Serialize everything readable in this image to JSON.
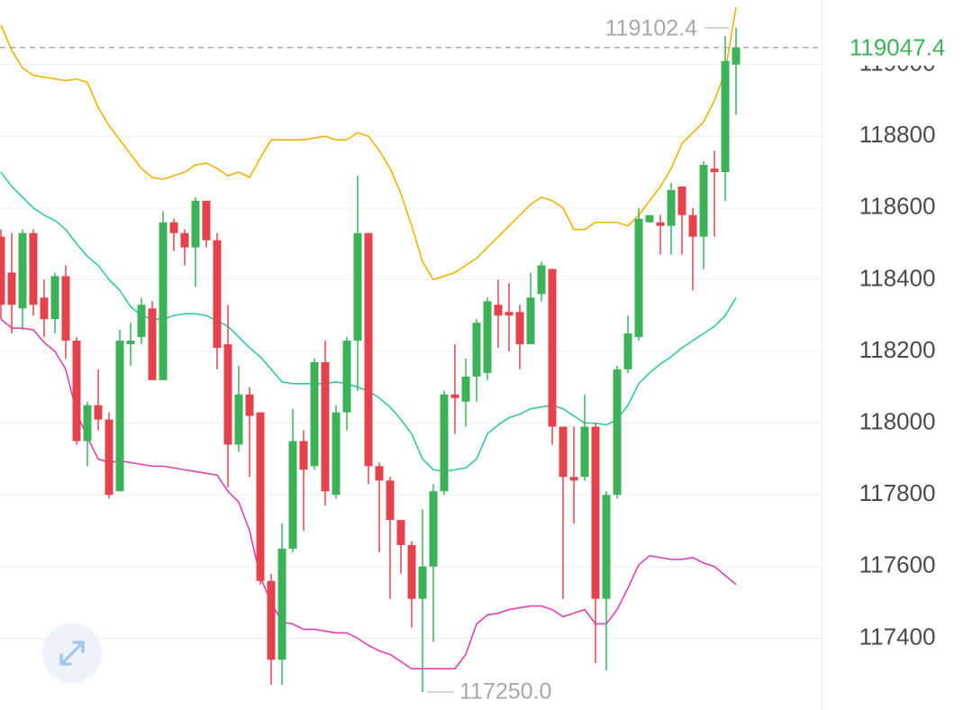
{
  "chart_data": {
    "type": "candlestick",
    "up_color": "#3cb35a",
    "down_color": "#e5424d",
    "grid": true,
    "ylim": [
      117200,
      119180
    ],
    "yticks": [
      117400,
      117600,
      117800,
      118000,
      118200,
      118400,
      118600,
      118800,
      119000
    ],
    "open": [
      118520,
      118420,
      118320,
      118530,
      118350,
      118290,
      118410,
      118230,
      117950,
      118050,
      118010,
      117810,
      118220,
      118240,
      118320,
      118120,
      118560,
      118530,
      118490,
      118620,
      118510,
      118220,
      117940,
      118080,
      118030,
      117560,
      117340,
      117650,
      117950,
      117880,
      118170,
      117800,
      118030,
      118230,
      118530,
      117880,
      117840,
      117730,
      117660,
      117510,
      117600,
      117810,
      118080,
      118060,
      118130,
      118140,
      118330,
      118310,
      118310,
      118220,
      118360,
      118430,
      117990,
      117850,
      117850,
      117990,
      117510,
      117800,
      118150,
      118240,
      118560,
      118560,
      118550,
      118660,
      118580,
      118520,
      118710,
      118700,
      119000
    ],
    "high": [
      118540,
      118530,
      118540,
      118540,
      118400,
      118420,
      118440,
      118240,
      118060,
      118150,
      118030,
      118260,
      118280,
      118350,
      118340,
      118590,
      118570,
      118540,
      118630,
      118620,
      118530,
      118330,
      118160,
      118100,
      118030,
      117580,
      117720,
      118040,
      117980,
      118180,
      118230,
      118050,
      118240,
      118690,
      118530,
      117890,
      117850,
      117730,
      117670,
      117760,
      117830,
      118090,
      118220,
      118180,
      118290,
      118350,
      118400,
      118390,
      118330,
      118420,
      118450,
      118430,
      117990,
      117990,
      118080,
      118000,
      117810,
      118160,
      118300,
      118600,
      118580,
      118580,
      118670,
      118660,
      118600,
      118730,
      118760,
      119080,
      119102.4
    ],
    "low": [
      118290,
      118250,
      118260,
      118300,
      118240,
      118250,
      118180,
      117940,
      117880,
      117980,
      117790,
      117810,
      118160,
      118220,
      118120,
      118120,
      118480,
      118440,
      118380,
      118490,
      118150,
      117820,
      117920,
      117850,
      117550,
      117270,
      117270,
      117640,
      117700,
      117870,
      117770,
      117790,
      117980,
      118090,
      117830,
      117640,
      117510,
      117580,
      117430,
      117250,
      117390,
      117800,
      117970,
      117990,
      118060,
      118120,
      118210,
      118200,
      118150,
      118220,
      118340,
      117940,
      117510,
      117720,
      117840,
      117330,
      117310,
      117790,
      118140,
      118230,
      118560,
      118470,
      118470,
      118470,
      118370,
      118430,
      118520,
      118620,
      118860
    ],
    "close": [
      118330,
      118330,
      118530,
      118330,
      118290,
      118410,
      118230,
      117950,
      118050,
      118010,
      117800,
      118230,
      118230,
      118330,
      118120,
      118560,
      118530,
      118490,
      118620,
      118510,
      118210,
      117940,
      118080,
      118020,
      117560,
      117340,
      117650,
      117950,
      117870,
      118170,
      117810,
      118030,
      118230,
      118530,
      117880,
      117840,
      117730,
      117660,
      117510,
      117600,
      117810,
      118080,
      118070,
      118130,
      118280,
      118340,
      118300,
      118300,
      118220,
      118350,
      118440,
      117990,
      117850,
      117840,
      117990,
      117510,
      117800,
      118150,
      118250,
      118570,
      118580,
      118550,
      118650,
      118580,
      118520,
      118720,
      118700,
      119010,
      119047.4
    ],
    "bands": [
      {
        "color": "#f0b400",
        "values": [
          119110,
          119040,
          118990,
          118970,
          118965,
          118960,
          118955,
          118960,
          118950,
          118880,
          118830,
          118790,
          118750,
          118710,
          118685,
          118680,
          118690,
          118700,
          118720,
          118725,
          118710,
          118690,
          118700,
          118685,
          118740,
          118790,
          118790,
          118790,
          118790,
          118795,
          118800,
          118790,
          118790,
          118810,
          118800,
          118760,
          118710,
          118640,
          118550,
          118450,
          118400,
          118410,
          118420,
          118440,
          118460,
          118490,
          118520,
          118550,
          118580,
          118610,
          118630,
          118620,
          118600,
          118540,
          118540,
          118560,
          118560,
          118560,
          118550,
          118580,
          118620,
          118660,
          118710,
          118780,
          118810,
          118840,
          118900,
          118980,
          119160
        ]
      },
      {
        "color": "#33c9a0",
        "values": [
          118700,
          118660,
          118630,
          118600,
          118580,
          118565,
          118540,
          118500,
          118465,
          118440,
          118400,
          118370,
          118325,
          118300,
          118290,
          118290,
          118300,
          118305,
          118305,
          118300,
          118285,
          118270,
          118240,
          118210,
          118185,
          118150,
          118115,
          118110,
          118110,
          118110,
          118110,
          118115,
          118110,
          118100,
          118090,
          118070,
          118045,
          118010,
          117970,
          117900,
          117870,
          117865,
          117870,
          117875,
          117900,
          117970,
          117995,
          118015,
          118025,
          118040,
          118045,
          118050,
          118040,
          118020,
          118000,
          118000,
          117995,
          118010,
          118050,
          118110,
          118140,
          118165,
          118185,
          118210,
          118230,
          118250,
          118270,
          118300,
          118350
        ]
      },
      {
        "color": "#e040b0",
        "values": [
          118290,
          118265,
          118265,
          118260,
          118225,
          118200,
          118150,
          118030,
          117960,
          117900,
          117890,
          117895,
          117890,
          117885,
          117880,
          117880,
          117875,
          117870,
          117865,
          117860,
          117855,
          117810,
          117780,
          117700,
          117570,
          117500,
          117445,
          117440,
          117425,
          117425,
          117420,
          117415,
          117415,
          117400,
          117380,
          117365,
          117355,
          117335,
          117315,
          117315,
          117315,
          117315,
          117315,
          117355,
          117440,
          117465,
          117470,
          117480,
          117485,
          117490,
          117490,
          117480,
          117460,
          117470,
          117480,
          117440,
          117440,
          117480,
          117540,
          117605,
          117630,
          117625,
          117620,
          117620,
          117625,
          117610,
          117600,
          117575,
          117550
        ]
      }
    ],
    "annotations": {
      "max": {
        "value": 119102.4
      },
      "min": {
        "value": 117250,
        "label": "117250.0"
      },
      "last_price": {
        "value": 119047.4
      }
    }
  }
}
